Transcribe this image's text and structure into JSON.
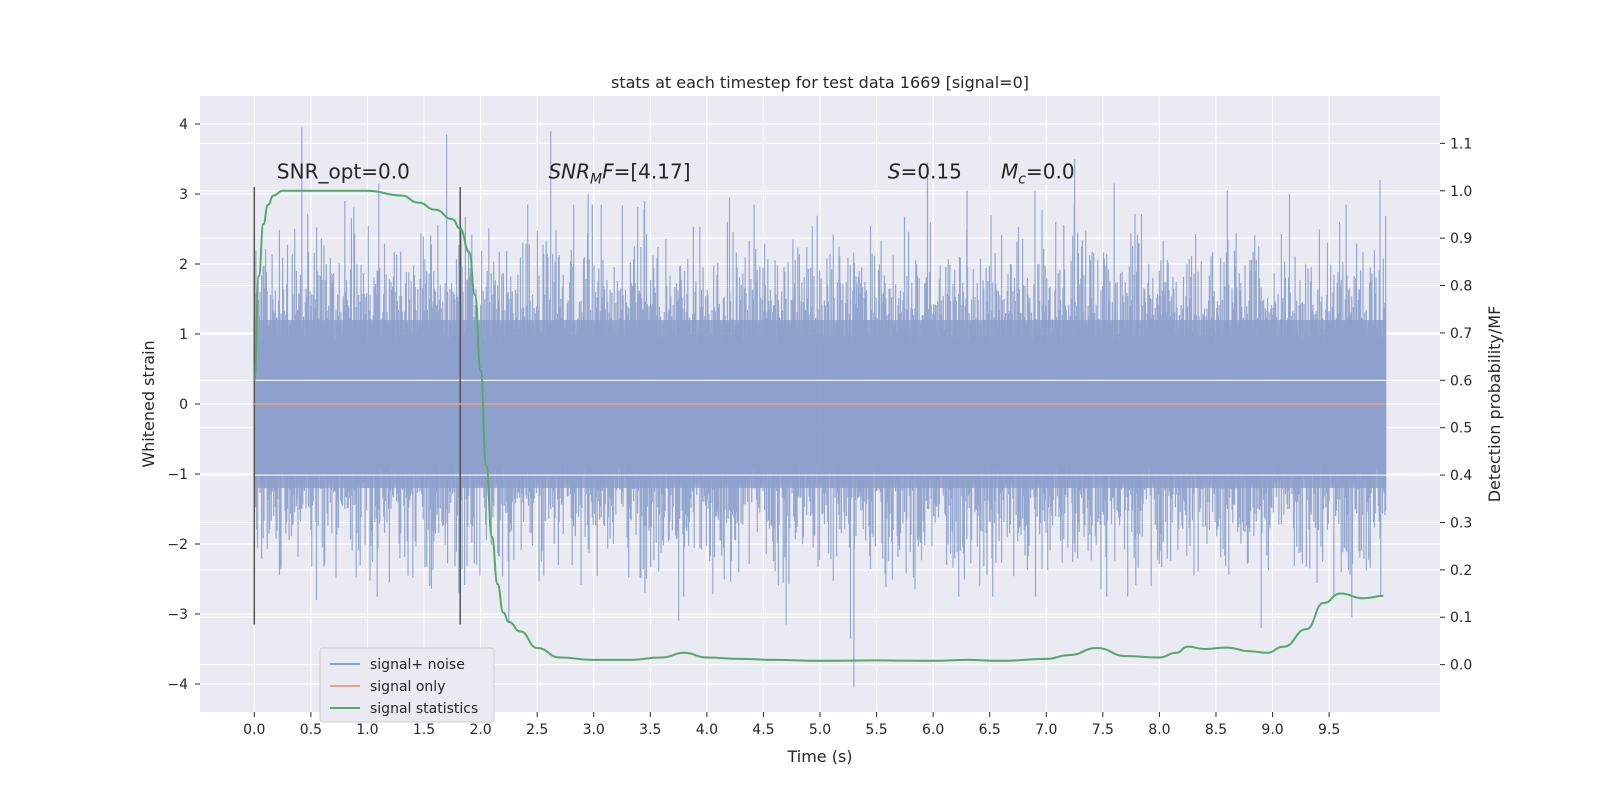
{
  "chart_data": {
    "type": "line",
    "title": "stats at each timestep for test data 1669 [signal=0]",
    "xlabel": "Time (s)",
    "ylabel": "Whitened strain",
    "y2label": "Detection probability/MF",
    "xlim": [
      -0.48,
      10.48
    ],
    "ylim": [
      -4.4,
      4.4
    ],
    "y2lim": [
      -0.1,
      1.2
    ],
    "grid": true,
    "legend_position": "lower-left",
    "x_ticks": [
      0.0,
      0.5,
      1.0,
      1.5,
      2.0,
      2.5,
      3.0,
      3.5,
      4.0,
      4.5,
      5.0,
      5.5,
      6.0,
      6.5,
      7.0,
      7.5,
      8.0,
      8.5,
      9.0,
      9.5
    ],
    "x_tick_labels": [
      "0.0",
      "0.5",
      "1.0",
      "1.5",
      "2.0",
      "2.5",
      "3.0",
      "3.5",
      "4.0",
      "4.5",
      "5.0",
      "5.5",
      "6.0",
      "6.5",
      "7.0",
      "7.5",
      "8.0",
      "8.5",
      "9.0",
      "9.5"
    ],
    "y_ticks": [
      4,
      3,
      2,
      1,
      0,
      -1,
      -2,
      -3,
      -4
    ],
    "y_tick_labels": [
      "4",
      "3",
      "2",
      "1",
      "0",
      "−1",
      "−2",
      "−3",
      "−4"
    ],
    "y2_ticks": [
      1.1,
      1.0,
      0.9,
      0.8,
      0.7,
      0.6,
      0.5,
      0.4,
      0.3,
      0.2,
      0.1,
      0.0
    ],
    "y2_tick_labels": [
      "1.1",
      "1.0",
      "0.9",
      "0.8",
      "0.7",
      "0.6",
      "0.5",
      "0.4",
      "0.3",
      "0.2",
      "0.1",
      "0.0"
    ],
    "vlines": [
      {
        "x": 0.0,
        "ymin": -3.15,
        "ymax": 3.1
      },
      {
        "x": 1.82,
        "ymin": -3.15,
        "ymax": 3.1
      }
    ],
    "annotations": [
      {
        "text": "SNR_opt=0.0",
        "x": 0.2,
        "y": 3.22
      },
      {
        "text_parts": [
          {
            "t": "SNR",
            "style": "italic"
          },
          {
            "t": "M",
            "style": "italic-sub"
          },
          {
            "t": "F",
            "style": "italic"
          },
          {
            "t": "=[4.17]"
          }
        ],
        "x": 2.6,
        "y": 3.22
      },
      {
        "text_parts": [
          {
            "t": "S",
            "style": "italic"
          },
          {
            "t": "=0.15"
          }
        ],
        "x": 5.6,
        "y": 3.22
      },
      {
        "text_parts": [
          {
            "t": "M",
            "style": "italic"
          },
          {
            "t": "c",
            "style": "italic-sub"
          },
          {
            "t": "=0.0"
          }
        ],
        "x": 6.6,
        "y": 3.22
      }
    ],
    "series": [
      {
        "name": "signal+ noise",
        "color": "#8da0cb",
        "axis": "left",
        "kind": "noise",
        "x_range": [
          0.0,
          10.0
        ],
        "band_abs": 1.0,
        "spikes": [
          {
            "x": 0.42,
            "y": 3.95
          },
          {
            "x": 0.55,
            "y": -2.8
          },
          {
            "x": 0.8,
            "y": 2.9
          },
          {
            "x": 1.1,
            "y": 3.15
          },
          {
            "x": 1.55,
            "y": -2.6
          },
          {
            "x": 1.7,
            "y": 3.85
          },
          {
            "x": 2.25,
            "y": -3.1
          },
          {
            "x": 2.62,
            "y": 3.9
          },
          {
            "x": 2.95,
            "y": 3.0
          },
          {
            "x": 3.45,
            "y": 2.9
          },
          {
            "x": 3.75,
            "y": -3.1
          },
          {
            "x": 4.2,
            "y": 2.95
          },
          {
            "x": 4.7,
            "y": -3.15
          },
          {
            "x": 5.3,
            "y": -4.05
          },
          {
            "x": 5.27,
            "y": -3.35
          },
          {
            "x": 5.95,
            "y": 3.45
          },
          {
            "x": 6.3,
            "y": 3.05
          },
          {
            "x": 6.9,
            "y": 3.05
          },
          {
            "x": 7.25,
            "y": 3.5
          },
          {
            "x": 7.6,
            "y": 3.15
          },
          {
            "x": 8.6,
            "y": 3.05
          },
          {
            "x": 8.9,
            "y": -3.2
          },
          {
            "x": 9.15,
            "y": 3.0
          },
          {
            "x": 9.7,
            "y": -3.05
          },
          {
            "x": 9.95,
            "y": 3.2
          }
        ]
      },
      {
        "name": "signal only",
        "color": "#e8a287",
        "axis": "left",
        "kind": "line",
        "x": [
          0.0,
          10.0
        ],
        "y": [
          0.0,
          0.0
        ]
      },
      {
        "name": "signal statistics",
        "color": "#55a868",
        "axis": "right",
        "kind": "line",
        "x": [
          0.0,
          0.04,
          0.08,
          0.12,
          0.17,
          0.25,
          0.4,
          0.7,
          1.0,
          1.3,
          1.45,
          1.6,
          1.75,
          1.82,
          1.9,
          1.95,
          2.0,
          2.05,
          2.1,
          2.15,
          2.2,
          2.25,
          2.35,
          2.5,
          2.7,
          3.0,
          3.3,
          3.6,
          3.8,
          4.0,
          4.3,
          4.6,
          5.0,
          5.5,
          6.0,
          6.3,
          6.6,
          7.0,
          7.2,
          7.45,
          7.7,
          8.0,
          8.15,
          8.25,
          8.4,
          8.6,
          8.8,
          8.95,
          9.1,
          9.3,
          9.45,
          9.6,
          9.8,
          9.98
        ],
        "y": [
          0.6,
          0.82,
          0.93,
          0.97,
          0.99,
          1.0,
          1.0,
          1.0,
          1.0,
          0.99,
          0.975,
          0.96,
          0.94,
          0.92,
          0.87,
          0.78,
          0.62,
          0.42,
          0.27,
          0.17,
          0.11,
          0.09,
          0.07,
          0.035,
          0.015,
          0.01,
          0.01,
          0.015,
          0.025,
          0.015,
          0.012,
          0.01,
          0.008,
          0.009,
          0.008,
          0.01,
          0.008,
          0.012,
          0.02,
          0.035,
          0.018,
          0.015,
          0.025,
          0.038,
          0.033,
          0.036,
          0.028,
          0.025,
          0.038,
          0.075,
          0.13,
          0.15,
          0.14,
          0.145
        ]
      }
    ]
  }
}
